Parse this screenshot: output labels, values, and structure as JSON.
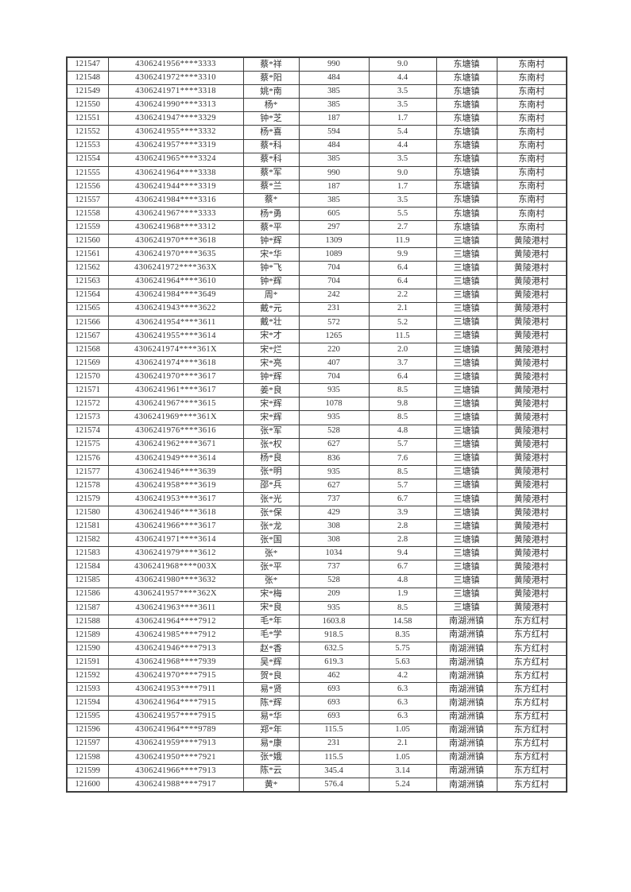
{
  "colors": {
    "page_background": "#ffffff",
    "text": "#333333",
    "border": "#3d3d3d"
  },
  "table": {
    "rows": [
      [
        "121547",
        "4306241956****3333",
        "蔡*祥",
        "990",
        "9.0",
        "东塘镇",
        "东南村"
      ],
      [
        "121548",
        "4306241972****3310",
        "蔡*阳",
        "484",
        "4.4",
        "东塘镇",
        "东南村"
      ],
      [
        "121549",
        "4306241971****3318",
        "姚*南",
        "385",
        "3.5",
        "东塘镇",
        "东南村"
      ],
      [
        "121550",
        "4306241990****3313",
        "杨*",
        "385",
        "3.5",
        "东塘镇",
        "东南村"
      ],
      [
        "121551",
        "4306241947****3329",
        "钟*芝",
        "187",
        "1.7",
        "东塘镇",
        "东南村"
      ],
      [
        "121552",
        "4306241955****3332",
        "杨*喜",
        "594",
        "5.4",
        "东塘镇",
        "东南村"
      ],
      [
        "121553",
        "4306241957****3319",
        "蔡*科",
        "484",
        "4.4",
        "东塘镇",
        "东南村"
      ],
      [
        "121554",
        "4306241965****3324",
        "蔡*科",
        "385",
        "3.5",
        "东塘镇",
        "东南村"
      ],
      [
        "121555",
        "4306241964****3338",
        "蔡*军",
        "990",
        "9.0",
        "东塘镇",
        "东南村"
      ],
      [
        "121556",
        "4306241944****3319",
        "蔡*兰",
        "187",
        "1.7",
        "东塘镇",
        "东南村"
      ],
      [
        "121557",
        "4306241984****3316",
        "蔡*",
        "385",
        "3.5",
        "东塘镇",
        "东南村"
      ],
      [
        "121558",
        "4306241967****3333",
        "杨*勇",
        "605",
        "5.5",
        "东塘镇",
        "东南村"
      ],
      [
        "121559",
        "4306241968****3312",
        "蔡*平",
        "297",
        "2.7",
        "东塘镇",
        "东南村"
      ],
      [
        "121560",
        "4306241970****3618",
        "钟*辉",
        "1309",
        "11.9",
        "三塘镇",
        "黄陵港村"
      ],
      [
        "121561",
        "4306241970****3635",
        "宋*华",
        "1089",
        "9.9",
        "三塘镇",
        "黄陵港村"
      ],
      [
        "121562",
        "4306241972****363X",
        "钟*飞",
        "704",
        "6.4",
        "三塘镇",
        "黄陵港村"
      ],
      [
        "121563",
        "4306241964****3610",
        "钟*辉",
        "704",
        "6.4",
        "三塘镇",
        "黄陵港村"
      ],
      [
        "121564",
        "4306241984****3649",
        "周*",
        "242",
        "2.2",
        "三塘镇",
        "黄陵港村"
      ],
      [
        "121565",
        "4306241943****3622",
        "戴*元",
        "231",
        "2.1",
        "三塘镇",
        "黄陵港村"
      ],
      [
        "121566",
        "4306241954****3611",
        "戴*壮",
        "572",
        "5.2",
        "三塘镇",
        "黄陵港村"
      ],
      [
        "121567",
        "4306241955****3614",
        "宋*才",
        "1265",
        "11.5",
        "三塘镇",
        "黄陵港村"
      ],
      [
        "121568",
        "4306241974****361X",
        "宋*烂",
        "220",
        "2.0",
        "三塘镇",
        "黄陵港村"
      ],
      [
        "121569",
        "4306241974****3618",
        "宋*亮",
        "407",
        "3.7",
        "三塘镇",
        "黄陵港村"
      ],
      [
        "121570",
        "4306241970****3617",
        "钟*辉",
        "704",
        "6.4",
        "三塘镇",
        "黄陵港村"
      ],
      [
        "121571",
        "4306241961****3617",
        "姜*良",
        "935",
        "8.5",
        "三塘镇",
        "黄陵港村"
      ],
      [
        "121572",
        "4306241967****3615",
        "宋*辉",
        "1078",
        "9.8",
        "三塘镇",
        "黄陵港村"
      ],
      [
        "121573",
        "4306241969****361X",
        "宋*辉",
        "935",
        "8.5",
        "三塘镇",
        "黄陵港村"
      ],
      [
        "121574",
        "4306241976****3616",
        "张*军",
        "528",
        "4.8",
        "三塘镇",
        "黄陵港村"
      ],
      [
        "121575",
        "4306241962****3671",
        "张*权",
        "627",
        "5.7",
        "三塘镇",
        "黄陵港村"
      ],
      [
        "121576",
        "4306241949****3614",
        "杨*良",
        "836",
        "7.6",
        "三塘镇",
        "黄陵港村"
      ],
      [
        "121577",
        "4306241946****3639",
        "张*明",
        "935",
        "8.5",
        "三塘镇",
        "黄陵港村"
      ],
      [
        "121578",
        "4306241958****3619",
        "邵*兵",
        "627",
        "5.7",
        "三塘镇",
        "黄陵港村"
      ],
      [
        "121579",
        "4306241953****3617",
        "张*光",
        "737",
        "6.7",
        "三塘镇",
        "黄陵港村"
      ],
      [
        "121580",
        "4306241946****3618",
        "张*保",
        "429",
        "3.9",
        "三塘镇",
        "黄陵港村"
      ],
      [
        "121581",
        "4306241966****3617",
        "张*龙",
        "308",
        "2.8",
        "三塘镇",
        "黄陵港村"
      ],
      [
        "121582",
        "4306241971****3614",
        "张*国",
        "308",
        "2.8",
        "三塘镇",
        "黄陵港村"
      ],
      [
        "121583",
        "4306241979****3612",
        "张*",
        "1034",
        "9.4",
        "三塘镇",
        "黄陵港村"
      ],
      [
        "121584",
        "4306241968****003X",
        "张*平",
        "737",
        "6.7",
        "三塘镇",
        "黄陵港村"
      ],
      [
        "121585",
        "4306241980****3632",
        "张*",
        "528",
        "4.8",
        "三塘镇",
        "黄陵港村"
      ],
      [
        "121586",
        "4306241957****362X",
        "宋*梅",
        "209",
        "1.9",
        "三塘镇",
        "黄陵港村"
      ],
      [
        "121587",
        "4306241963****3611",
        "宋*良",
        "935",
        "8.5",
        "三塘镇",
        "黄陵港村"
      ],
      [
        "121588",
        "4306241964****7912",
        "毛*年",
        "1603.8",
        "14.58",
        "南湖洲镇",
        "东方红村"
      ],
      [
        "121589",
        "4306241985****7912",
        "毛*学",
        "918.5",
        "8.35",
        "南湖洲镇",
        "东方红村"
      ],
      [
        "121590",
        "4306241946****7913",
        "赵*香",
        "632.5",
        "5.75",
        "南湖洲镇",
        "东方红村"
      ],
      [
        "121591",
        "4306241968****7939",
        "吴*辉",
        "619.3",
        "5.63",
        "南湖洲镇",
        "东方红村"
      ],
      [
        "121592",
        "4306241970****7915",
        "贺*良",
        "462",
        "4.2",
        "南湖洲镇",
        "东方红村"
      ],
      [
        "121593",
        "4306241953****7911",
        "易*贤",
        "693",
        "6.3",
        "南湖洲镇",
        "东方红村"
      ],
      [
        "121594",
        "4306241964****7915",
        "陈*辉",
        "693",
        "6.3",
        "南湖洲镇",
        "东方红村"
      ],
      [
        "121595",
        "4306241957****7915",
        "易*华",
        "693",
        "6.3",
        "南湖洲镇",
        "东方红村"
      ],
      [
        "121596",
        "4306241964****9789",
        "郑*年",
        "115.5",
        "1.05",
        "南湖洲镇",
        "东方红村"
      ],
      [
        "121597",
        "4306241959****7913",
        "易*康",
        "231",
        "2.1",
        "南湖洲镇",
        "东方红村"
      ],
      [
        "121598",
        "4306241950****7921",
        "张*娥",
        "115.5",
        "1.05",
        "南湖洲镇",
        "东方红村"
      ],
      [
        "121599",
        "4306241966****7913",
        "陈*云",
        "345.4",
        "3.14",
        "南湖洲镇",
        "东方红村"
      ],
      [
        "121600",
        "4306241988****7917",
        "黄*",
        "576.4",
        "5.24",
        "南湖洲镇",
        "东方红村"
      ]
    ]
  }
}
